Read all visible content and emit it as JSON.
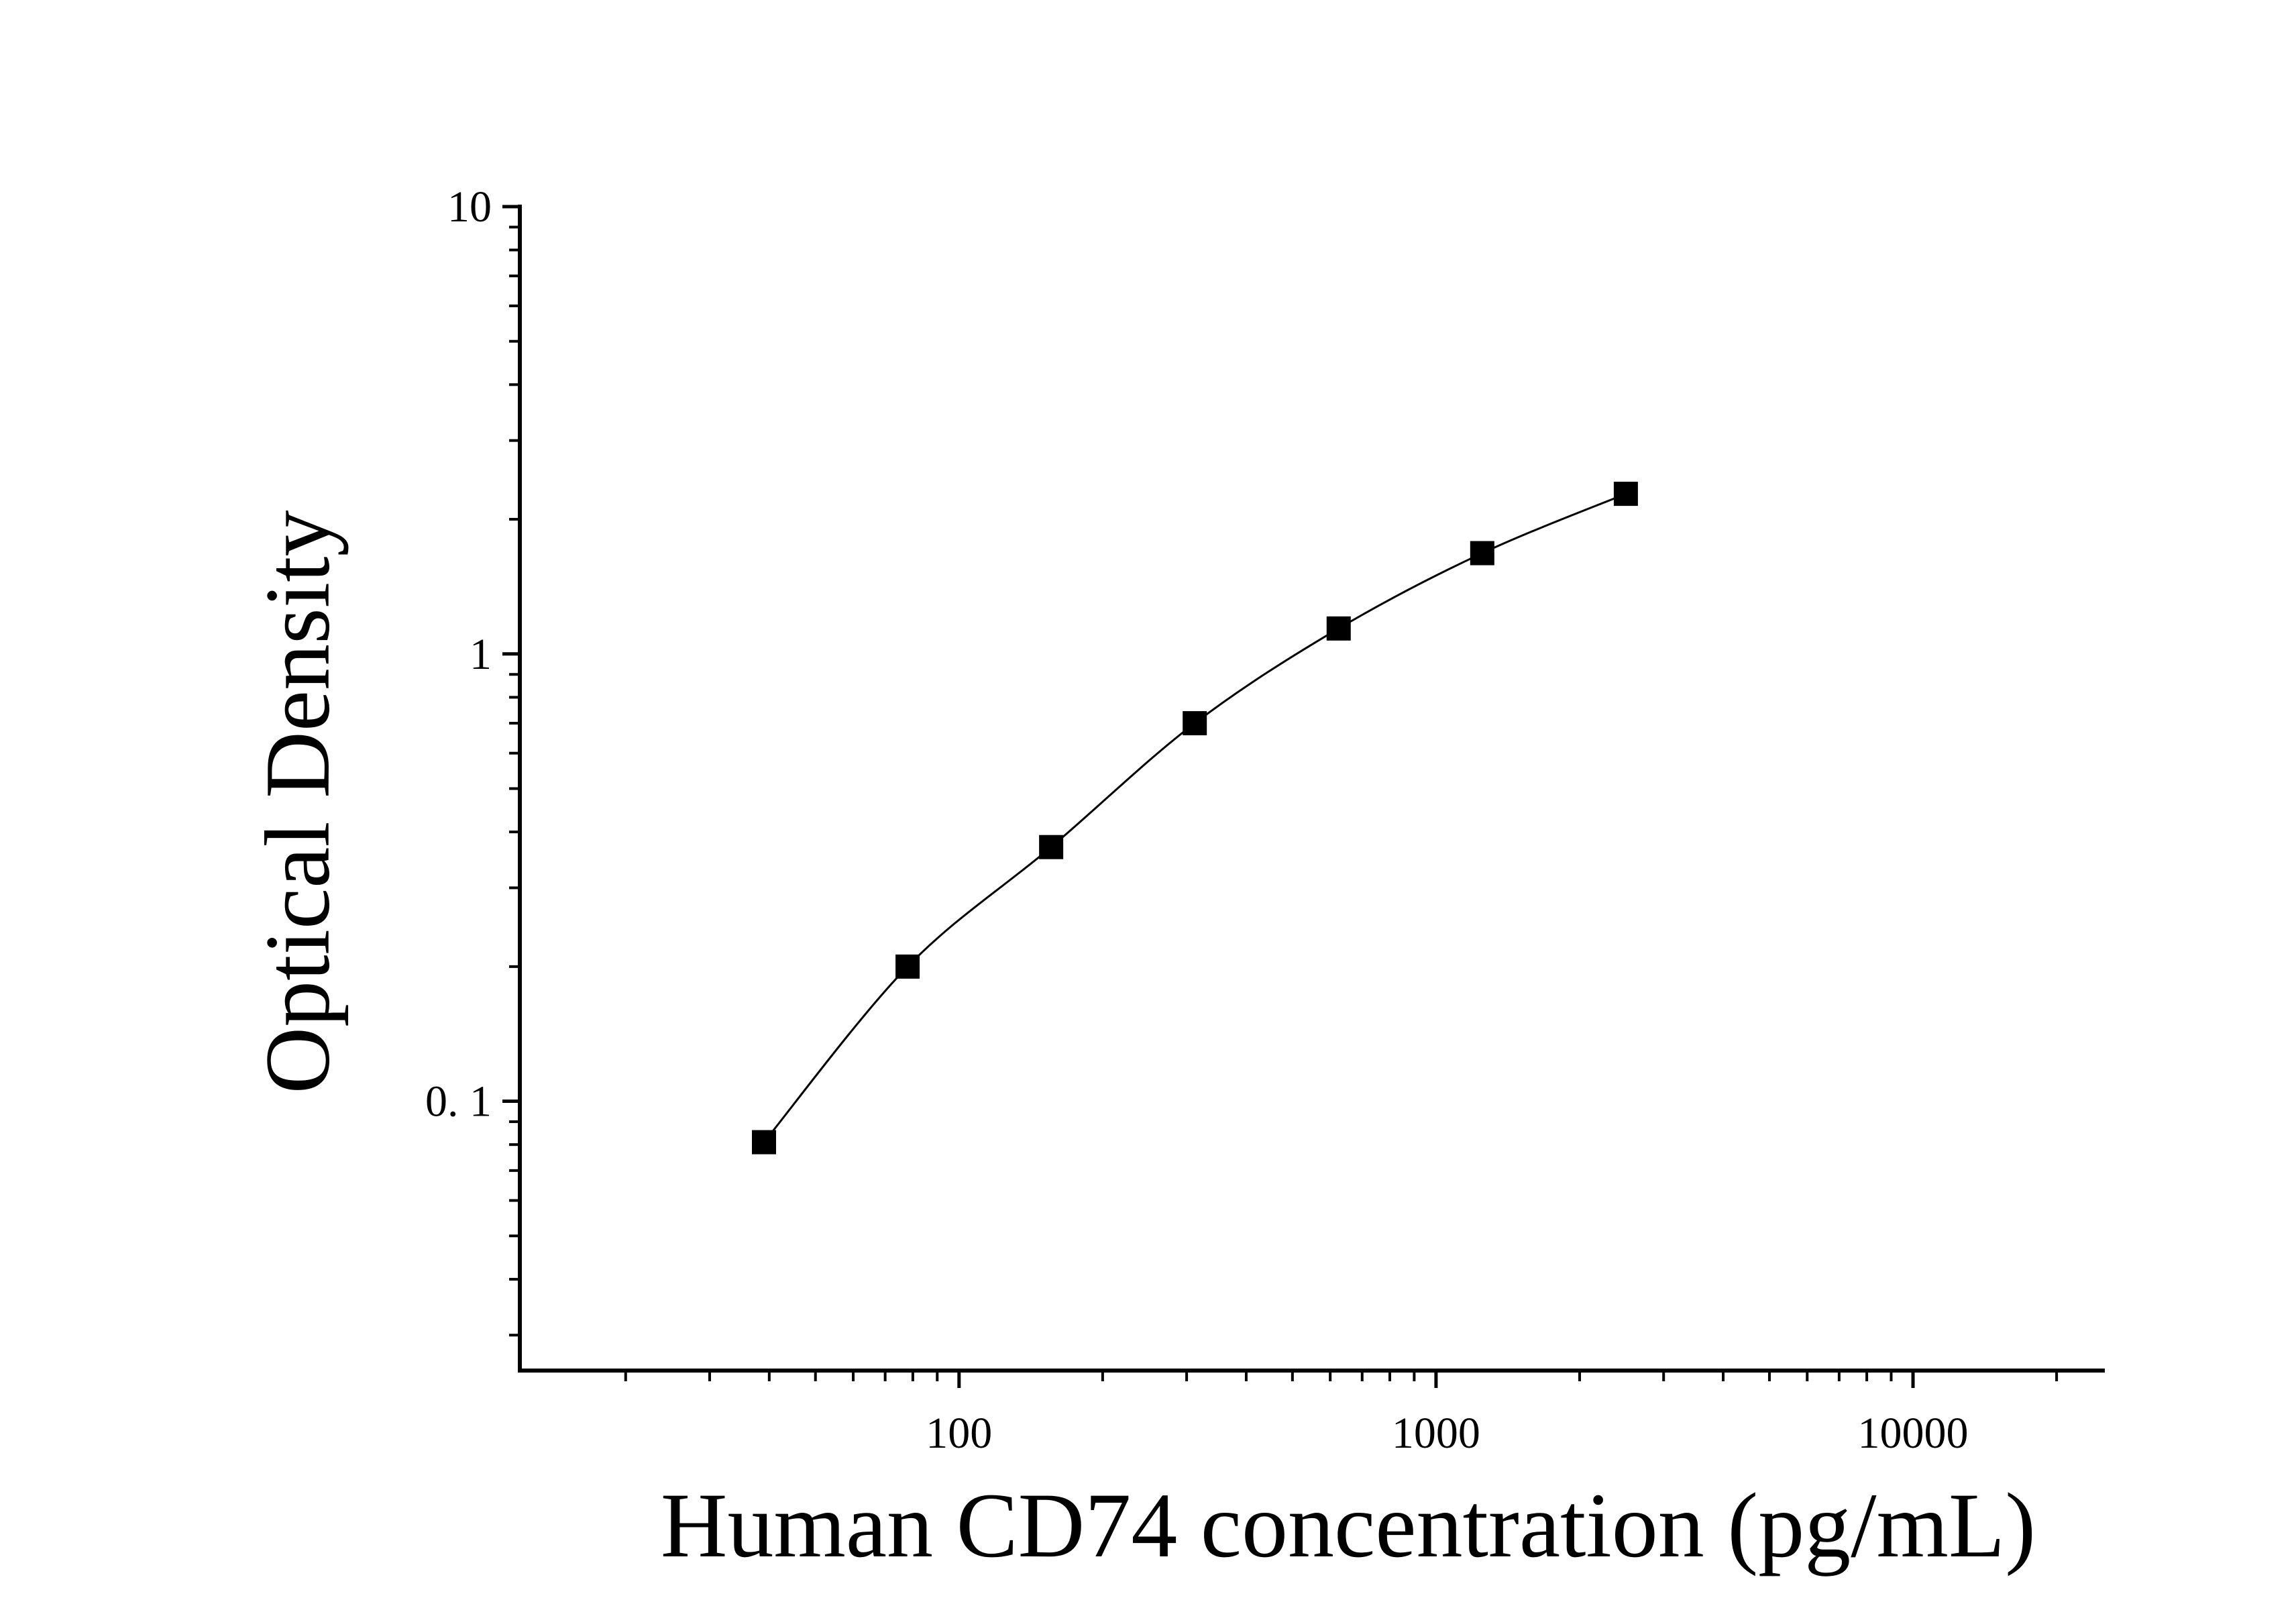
{
  "chart_data": {
    "type": "scatter",
    "xlabel": "Human CD74 concentration (pg/mL)",
    "ylabel": "Optical Density",
    "x_scale": "log",
    "y_scale": "log",
    "xlim": [
      12,
      25000
    ],
    "ylim": [
      0.025,
      10
    ],
    "x_ticks": [
      {
        "value": 100,
        "label": "100"
      },
      {
        "value": 1000,
        "label": "1000"
      },
      {
        "value": 10000,
        "label": "10000"
      }
    ],
    "y_ticks": [
      {
        "value": 10,
        "label": "10"
      },
      {
        "value": 1,
        "label": "1"
      },
      {
        "value": 0.1,
        "label": "0. 1"
      }
    ],
    "grid": false,
    "series": [
      {
        "marker": "square",
        "color": "#000000",
        "fit_line": true,
        "points": [
          {
            "x": 39,
            "y": 0.081
          },
          {
            "x": 78,
            "y": 0.2
          },
          {
            "x": 156,
            "y": 0.37
          },
          {
            "x": 312,
            "y": 0.7
          },
          {
            "x": 625,
            "y": 1.14
          },
          {
            "x": 1250,
            "y": 1.68
          },
          {
            "x": 2500,
            "y": 2.28
          }
        ]
      }
    ]
  }
}
